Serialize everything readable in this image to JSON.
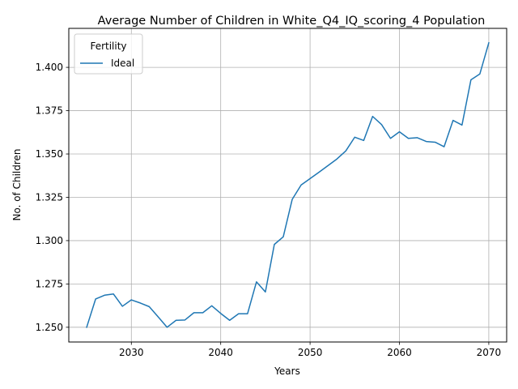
{
  "chart_data": {
    "type": "line",
    "title": "Average Number of Children in White_Q4_IQ_scoring_4 Population",
    "xlabel": "Years",
    "ylabel": "No. of Children",
    "xlim": [
      2023,
      2072
    ],
    "ylim": [
      1.2415,
      1.4225
    ],
    "xticks": [
      2030,
      2040,
      2050,
      2060,
      2070
    ],
    "yticks": [
      1.25,
      1.275,
      1.3,
      1.325,
      1.35,
      1.375,
      1.4
    ],
    "ytick_labels": [
      "1.250",
      "1.275",
      "1.300",
      "1.325",
      "1.350",
      "1.375",
      "1.400"
    ],
    "grid": true,
    "legend": {
      "title": "Fertility",
      "position": "top-left"
    },
    "series": [
      {
        "name": "Ideal",
        "color": "#1f77b4",
        "x": [
          2025,
          2026,
          2027,
          2028,
          2029,
          2030,
          2031,
          2032,
          2033,
          2034,
          2035,
          2036,
          2037,
          2038,
          2039,
          2040,
          2041,
          2042,
          2043,
          2044,
          2045,
          2046,
          2047,
          2048,
          2049,
          2050,
          2051,
          2052,
          2053,
          2054,
          2055,
          2056,
          2057,
          2058,
          2059,
          2060,
          2061,
          2062,
          2063,
          2064,
          2065,
          2066,
          2067,
          2068,
          2069,
          2070
        ],
        "y": [
          1.25,
          1.2663,
          1.2685,
          1.2692,
          1.2621,
          1.2658,
          1.264,
          1.2619,
          1.256,
          1.25,
          1.254,
          1.2542,
          1.2584,
          1.2584,
          1.2624,
          1.258,
          1.254,
          1.2578,
          1.2578,
          1.2762,
          1.2704,
          1.2978,
          1.3022,
          1.3238,
          1.3321,
          1.3358,
          1.3395,
          1.3433,
          1.3471,
          1.3518,
          1.3597,
          1.3578,
          1.3717,
          1.367,
          1.359,
          1.3628,
          1.359,
          1.3594,
          1.3572,
          1.3568,
          1.3542,
          1.3694,
          1.3667,
          1.3928,
          1.3962,
          1.4142
        ]
      }
    ]
  }
}
